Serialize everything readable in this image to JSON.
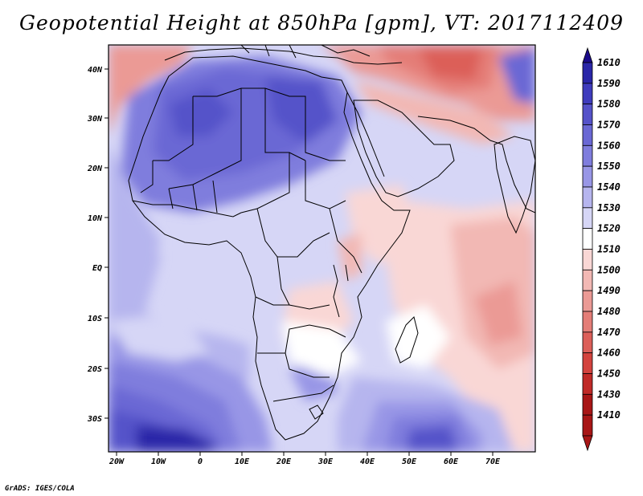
{
  "title": "Geopotential Height at 850hPa [gpm], VT: 2017112409",
  "credit": "GrADS: IGES/COLA",
  "axes": {
    "lon_ticks": [
      "20W",
      "10W",
      "0",
      "10E",
      "20E",
      "30E",
      "40E",
      "50E",
      "60E",
      "70E"
    ],
    "lat_ticks": [
      "40N",
      "30N",
      "20N",
      "10N",
      "EQ",
      "10S",
      "20S",
      "30S"
    ]
  },
  "colorbar": {
    "levels": [
      "1610",
      "1590",
      "1580",
      "1570",
      "1560",
      "1550",
      "1540",
      "1530",
      "1520",
      "1510",
      "1500",
      "1490",
      "1480",
      "1470",
      "1460",
      "1450",
      "1430",
      "1410"
    ],
    "colors": [
      "#1a0a8a",
      "#2a26a8",
      "#3f3cbd",
      "#5552c9",
      "#6a68d4",
      "#7f7ddd",
      "#9896e6",
      "#b6b5ee",
      "#d6d6f6",
      "#ffffff",
      "#f9d7d5",
      "#f2b8b4",
      "#eb9a95",
      "#e47d77",
      "#dc5f59",
      "#d3433e",
      "#c02a27",
      "#a81616"
    ]
  },
  "colors": {
    "land_outline": "#000000",
    "frame": "#000000"
  }
}
